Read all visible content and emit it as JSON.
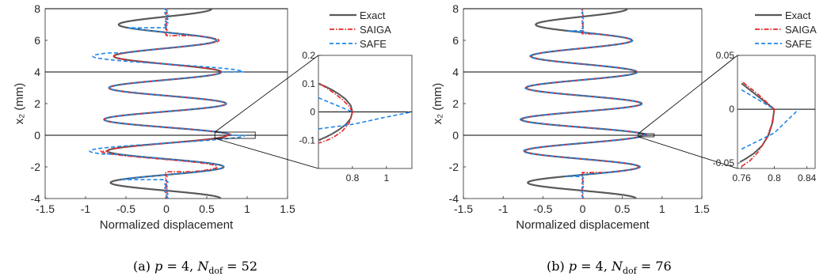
{
  "chart_data": [
    {
      "id": "a",
      "type": "line",
      "caption": {
        "label": "(a)",
        "p": "4",
        "ndof": "52"
      },
      "xlabel": "Normalized displacement",
      "ylabel": "x₂ (mm)",
      "xlim": [
        -1.5,
        1.5
      ],
      "ylim": [
        -4,
        8
      ],
      "xticks": [
        "-1.5",
        "-1",
        "-0.5",
        "0",
        "0.5",
        "1",
        "1.5"
      ],
      "yticks": [
        "-4",
        "-2",
        "0",
        "2",
        "4",
        "6",
        "8"
      ],
      "reference_lines_y": [
        0,
        4,
        8
      ],
      "legend": {
        "position": "outside-right",
        "entries": [
          "Exact",
          "SAIGA",
          "SAFE"
        ]
      },
      "series_colors": {
        "Exact": "#595959",
        "SAIGA": "#e8282a",
        "SAFE": "#1f86e8"
      },
      "zoom_box": {
        "xlim": [
          0.6,
          1.1
        ],
        "ylim": [
          -0.2,
          0.2
        ]
      },
      "inset": {
        "xlim": [
          0.6,
          1.15
        ],
        "ylim": [
          -0.2,
          0.2
        ],
        "xticks": [
          "0.8",
          "1"
        ],
        "yticks": [
          "-0.1",
          "0",
          "0.1",
          "0.2"
        ],
        "series": [
          {
            "name": "Exact",
            "x": [
              0.8,
              0.79,
              0.76,
              0.72,
              0.68,
              0.64,
              0.6
            ],
            "y": [
              0,
              0.023,
              0.045,
              0.063,
              0.078,
              0.09,
              0.1
            ]
          },
          {
            "name": "Exact",
            "x": [
              0.8,
              0.79,
              0.76,
              0.72,
              0.68,
              0.64,
              0.6
            ],
            "y": [
              0,
              -0.023,
              -0.045,
              -0.063,
              -0.078,
              -0.09,
              -0.1
            ]
          },
          {
            "name": "SAIGA",
            "x": [
              0.8,
              0.78,
              0.74,
              0.7,
              0.66,
              0.62,
              0.6
            ],
            "y": [
              0,
              0.02,
              0.044,
              0.063,
              0.08,
              0.095,
              0.1
            ]
          },
          {
            "name": "SAIGA",
            "x": [
              0.8,
              0.78,
              0.74,
              0.7,
              0.66,
              0.62,
              0.6
            ],
            "y": [
              0,
              -0.04,
              -0.068,
              -0.085,
              -0.098,
              -0.107,
              -0.11
            ]
          },
          {
            "name": "SAFE",
            "x": [
              0.6,
              0.7,
              0.8
            ],
            "y": [
              0.05,
              0.025,
              0
            ]
          },
          {
            "name": "SAFE",
            "x": [
              0.6,
              0.8,
              1.0,
              1.15
            ],
            "y": [
              -0.06,
              -0.044,
              -0.018,
              0
            ]
          }
        ]
      }
    },
    {
      "id": "b",
      "type": "line",
      "caption": {
        "label": "(b)",
        "p": "4",
        "ndof": "76"
      },
      "xlabel": "Normalized displacement",
      "ylabel": "x₂ (mm)",
      "xlim": [
        -1.5,
        1.5
      ],
      "ylim": [
        -4,
        8
      ],
      "xticks": [
        "-1.5",
        "-1",
        "-0.5",
        "0",
        "0.5",
        "1",
        "1.5"
      ],
      "yticks": [
        "-4",
        "-2",
        "0",
        "2",
        "4",
        "6",
        "8"
      ],
      "reference_lines_y": [
        0,
        4,
        8
      ],
      "legend": {
        "position": "outside-right",
        "entries": [
          "Exact",
          "SAIGA",
          "SAFE"
        ]
      },
      "series_colors": {
        "Exact": "#595959",
        "SAIGA": "#e8282a",
        "SAFE": "#1f86e8"
      },
      "zoom_box": {
        "xlim": [
          0.7,
          0.9
        ],
        "ylim": [
          -0.1,
          0.1
        ]
      },
      "inset": {
        "xlim": [
          0.755,
          0.85
        ],
        "ylim": [
          -0.055,
          0.05
        ],
        "xticks": [
          "0.76",
          "0.8",
          "0.84"
        ],
        "yticks": [
          "-0.05",
          "0",
          "0.05"
        ],
        "series": [
          {
            "name": "Exact",
            "x": [
              0.8,
              0.79,
              0.78,
              0.77,
              0.76
            ],
            "y": [
              0,
              0.006,
              0.012,
              0.018,
              0.024
            ]
          },
          {
            "name": "Exact",
            "x": [
              0.8,
              0.798,
              0.793,
              0.785,
              0.775,
              0.765,
              0.758
            ],
            "y": [
              0,
              -0.012,
              -0.024,
              -0.034,
              -0.041,
              -0.046,
              -0.049
            ]
          },
          {
            "name": "SAIGA",
            "x": [
              0.8,
              0.79,
              0.78,
              0.77,
              0.76
            ],
            "y": [
              0,
              0.007,
              0.014,
              0.02,
              0.026
            ]
          },
          {
            "name": "SAIGA",
            "x": [
              0.8,
              0.797,
              0.79,
              0.78,
              0.77,
              0.76
            ],
            "y": [
              0,
              -0.014,
              -0.028,
              -0.04,
              -0.048,
              -0.053
            ]
          },
          {
            "name": "SAFE",
            "x": [
              0.76,
              0.78,
              0.8
            ],
            "y": [
              0.018,
              0.009,
              0
            ]
          },
          {
            "name": "SAFE",
            "x": [
              0.76,
              0.8,
              0.83
            ],
            "y": [
              -0.037,
              -0.022,
              0
            ]
          }
        ]
      }
    }
  ]
}
